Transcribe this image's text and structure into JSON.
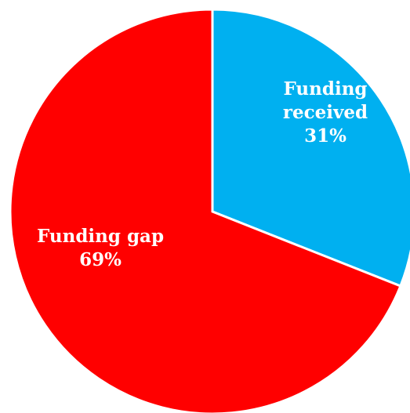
{
  "chart_data": {
    "type": "pie",
    "title": "",
    "start_angle_deg": 0,
    "direction": "clockwise",
    "slices": [
      {
        "label_lines": [
          "Funding",
          "received",
          "31%"
        ],
        "value": 31,
        "color": "#00B0F0"
      },
      {
        "label_lines": [
          "Funding gap",
          "69%"
        ],
        "value": 69,
        "color": "#FF0000"
      }
    ],
    "legend": "none"
  }
}
